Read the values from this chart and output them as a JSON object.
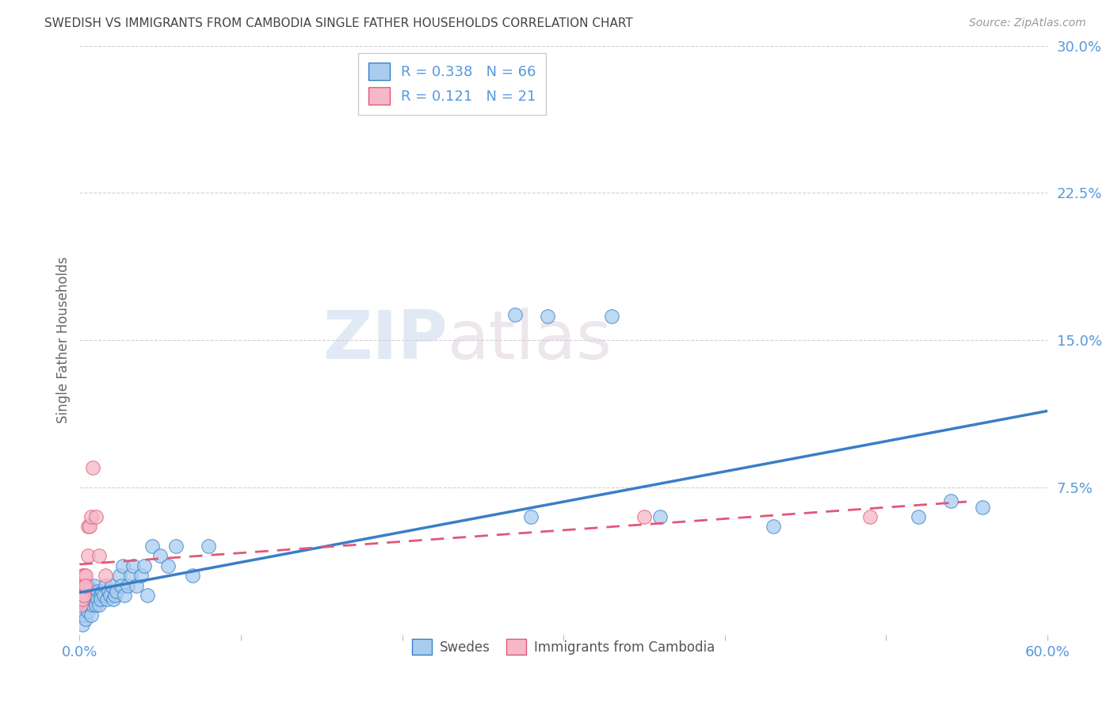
{
  "title": "SWEDISH VS IMMIGRANTS FROM CAMBODIA SINGLE FATHER HOUSEHOLDS CORRELATION CHART",
  "source": "Source: ZipAtlas.com",
  "ylabel": "Single Father Households",
  "xlim": [
    0,
    0.6
  ],
  "ylim": [
    0,
    0.3
  ],
  "xticks": [
    0.0,
    0.1,
    0.2,
    0.3,
    0.4,
    0.5,
    0.6
  ],
  "xticklabels": [
    "0.0%",
    "",
    "",
    "",
    "",
    "",
    "60.0%"
  ],
  "yticks": [
    0.0,
    0.075,
    0.15,
    0.225,
    0.3
  ],
  "yticklabels": [
    "",
    "7.5%",
    "15.0%",
    "22.5%",
    "30.0%"
  ],
  "legend_r_blue": "0.338",
  "legend_n_blue": "66",
  "legend_r_pink": "0.121",
  "legend_n_pink": "21",
  "blue_color": "#A8CDEF",
  "pink_color": "#F5B8C8",
  "blue_line_color": "#3A7EC8",
  "pink_line_color": "#E05878",
  "grid_color": "#CCCCCC",
  "axis_color": "#5599DD",
  "watermark_zip": "ZIP",
  "watermark_atlas": "atlas",
  "swedes_x": [
    0.001,
    0.001,
    0.002,
    0.002,
    0.002,
    0.003,
    0.003,
    0.003,
    0.004,
    0.004,
    0.004,
    0.005,
    0.005,
    0.005,
    0.006,
    0.006,
    0.007,
    0.007,
    0.007,
    0.008,
    0.008,
    0.009,
    0.009,
    0.01,
    0.01,
    0.011,
    0.011,
    0.012,
    0.013,
    0.013,
    0.014,
    0.015,
    0.016,
    0.017,
    0.018,
    0.019,
    0.02,
    0.021,
    0.022,
    0.023,
    0.025,
    0.026,
    0.027,
    0.028,
    0.03,
    0.032,
    0.033,
    0.035,
    0.038,
    0.04,
    0.042,
    0.045,
    0.05,
    0.055,
    0.06,
    0.07,
    0.08,
    0.27,
    0.29,
    0.33,
    0.52,
    0.54,
    0.56,
    0.28,
    0.36,
    0.43
  ],
  "swedes_y": [
    0.01,
    0.02,
    0.015,
    0.025,
    0.005,
    0.018,
    0.022,
    0.01,
    0.015,
    0.02,
    0.008,
    0.018,
    0.025,
    0.012,
    0.02,
    0.015,
    0.022,
    0.018,
    0.01,
    0.02,
    0.015,
    0.025,
    0.018,
    0.02,
    0.015,
    0.022,
    0.018,
    0.015,
    0.02,
    0.018,
    0.022,
    0.02,
    0.025,
    0.018,
    0.022,
    0.02,
    0.025,
    0.018,
    0.02,
    0.022,
    0.03,
    0.025,
    0.035,
    0.02,
    0.025,
    0.03,
    0.035,
    0.025,
    0.03,
    0.035,
    0.02,
    0.045,
    0.04,
    0.035,
    0.045,
    0.03,
    0.045,
    0.163,
    0.162,
    0.162,
    0.06,
    0.068,
    0.065,
    0.06,
    0.06,
    0.055
  ],
  "cambodia_x": [
    0.001,
    0.001,
    0.001,
    0.002,
    0.002,
    0.002,
    0.003,
    0.003,
    0.003,
    0.004,
    0.004,
    0.005,
    0.005,
    0.006,
    0.007,
    0.008,
    0.01,
    0.012,
    0.016,
    0.35,
    0.49
  ],
  "cambodia_y": [
    0.02,
    0.025,
    0.015,
    0.03,
    0.022,
    0.018,
    0.03,
    0.025,
    0.02,
    0.03,
    0.025,
    0.055,
    0.04,
    0.055,
    0.06,
    0.085,
    0.06,
    0.04,
    0.03,
    0.06,
    0.06
  ]
}
